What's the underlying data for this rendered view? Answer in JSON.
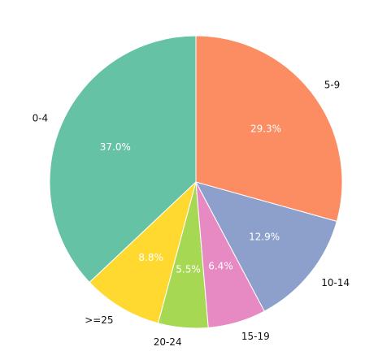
{
  "chart_data": {
    "type": "pie",
    "title": "",
    "start_angle_deg": 90,
    "direction": "counterclockwise",
    "slices": [
      {
        "label": "0-4",
        "value": 37.0,
        "pct_label": "37.0%",
        "color": "#66c2a5"
      },
      {
        "label": ">=25",
        "value": 8.8,
        "pct_label": "8.8%",
        "color": "#ffd92f"
      },
      {
        "label": "20-24",
        "value": 5.5,
        "pct_label": "5.5%",
        "color": "#a6d854"
      },
      {
        "label": "15-19",
        "value": 6.4,
        "pct_label": "6.4%",
        "color": "#e78ac3"
      },
      {
        "label": "10-14",
        "value": 12.9,
        "pct_label": "12.9%",
        "color": "#8da0cb"
      },
      {
        "label": "5-9",
        "value": 29.3,
        "pct_label": "29.3%",
        "color": "#fc8d62"
      }
    ]
  }
}
